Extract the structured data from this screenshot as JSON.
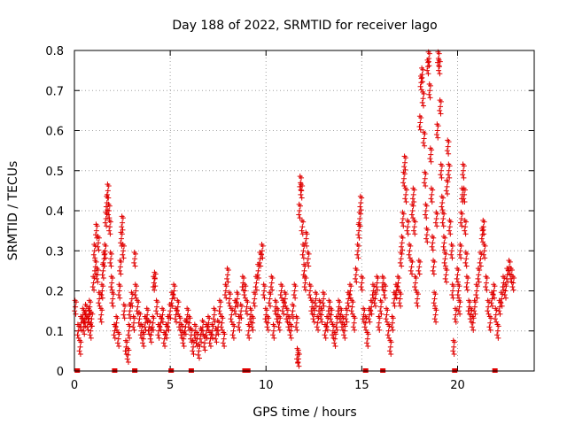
{
  "chart_data": {
    "type": "scatter",
    "title": "Day 188 of 2022, SRMTID for receiver lago",
    "xlabel": "GPS time / hours",
    "ylabel": "SRMTID / TECUs",
    "xlim": [
      0,
      24
    ],
    "ylim": [
      0,
      0.8
    ],
    "xticks": [
      0,
      5,
      10,
      15,
      20
    ],
    "xtick_labels": [
      "0",
      "5",
      "10",
      "15",
      "20"
    ],
    "yticks": [
      0,
      0.1,
      0.2,
      0.3,
      0.4,
      0.5,
      0.6,
      0.7,
      0.8
    ],
    "ytick_labels": [
      "0",
      "0.1",
      "0.2",
      "0.3",
      "0.4",
      "0.5",
      "0.6",
      "0.7",
      "0.8"
    ],
    "grid": true,
    "marker": "+",
    "color": "#e00000",
    "series": [
      {
        "name": "SRMTID",
        "points": [
          [
            0.05,
            0.16
          ],
          [
            0.2,
            0.1
          ],
          [
            0.3,
            0.06
          ],
          [
            0.35,
            0.12
          ],
          [
            0.45,
            0.14
          ],
          [
            0.5,
            0.11
          ],
          [
            0.55,
            0.13
          ],
          [
            0.6,
            0.15
          ],
          [
            0.7,
            0.12
          ],
          [
            0.75,
            0.14
          ],
          [
            0.8,
            0.16
          ],
          [
            0.85,
            0.1
          ],
          [
            0.9,
            0.13
          ],
          [
            1.0,
            0.22
          ],
          [
            1.05,
            0.3
          ],
          [
            1.1,
            0.26
          ],
          [
            1.15,
            0.35
          ],
          [
            1.2,
            0.24
          ],
          [
            1.25,
            0.32
          ],
          [
            1.3,
            0.18
          ],
          [
            1.4,
            0.14
          ],
          [
            1.45,
            0.2
          ],
          [
            1.5,
            0.25
          ],
          [
            1.55,
            0.28
          ],
          [
            1.6,
            0.3
          ],
          [
            1.65,
            0.38
          ],
          [
            1.7,
            0.42
          ],
          [
            1.75,
            0.45
          ],
          [
            1.8,
            0.4
          ],
          [
            1.85,
            0.36
          ],
          [
            1.9,
            0.28
          ],
          [
            1.95,
            0.22
          ],
          [
            2.0,
            0.18
          ],
          [
            2.1,
            0.1
          ],
          [
            2.2,
            0.12
          ],
          [
            2.3,
            0.08
          ],
          [
            2.35,
            0.2
          ],
          [
            2.4,
            0.26
          ],
          [
            2.45,
            0.33
          ],
          [
            2.5,
            0.37
          ],
          [
            2.55,
            0.3
          ],
          [
            2.6,
            0.15
          ],
          [
            2.7,
            0.06
          ],
          [
            2.8,
            0.04
          ],
          [
            2.85,
            0.1
          ],
          [
            2.9,
            0.15
          ],
          [
            3.0,
            0.18
          ],
          [
            3.1,
            0.12
          ],
          [
            3.15,
            0.28
          ],
          [
            3.2,
            0.2
          ],
          [
            3.3,
            0.16
          ],
          [
            3.4,
            0.13
          ],
          [
            3.5,
            0.1
          ],
          [
            3.6,
            0.08
          ],
          [
            3.7,
            0.12
          ],
          [
            3.8,
            0.14
          ],
          [
            3.9,
            0.11
          ],
          [
            4.0,
            0.09
          ],
          [
            4.1,
            0.12
          ],
          [
            4.15,
            0.22
          ],
          [
            4.2,
            0.23
          ],
          [
            4.3,
            0.16
          ],
          [
            4.4,
            0.1
          ],
          [
            4.5,
            0.12
          ],
          [
            4.6,
            0.14
          ],
          [
            4.7,
            0.08
          ],
          [
            4.8,
            0.1
          ],
          [
            4.9,
            0.12
          ],
          [
            5.0,
            0.15
          ],
          [
            5.1,
            0.18
          ],
          [
            5.2,
            0.2
          ],
          [
            5.3,
            0.14
          ],
          [
            5.4,
            0.16
          ],
          [
            5.5,
            0.12
          ],
          [
            5.6,
            0.1
          ],
          [
            5.7,
            0.08
          ],
          [
            5.8,
            0.11
          ],
          [
            5.9,
            0.14
          ],
          [
            6.0,
            0.12
          ],
          [
            6.1,
            0.09
          ],
          [
            6.2,
            0.06
          ],
          [
            6.3,
            0.1
          ],
          [
            6.4,
            0.08
          ],
          [
            6.5,
            0.05
          ],
          [
            6.6,
            0.09
          ],
          [
            6.7,
            0.11
          ],
          [
            6.8,
            0.07
          ],
          [
            6.9,
            0.1
          ],
          [
            7.0,
            0.12
          ],
          [
            7.1,
            0.08
          ],
          [
            7.2,
            0.1
          ],
          [
            7.3,
            0.14
          ],
          [
            7.4,
            0.09
          ],
          [
            7.5,
            0.11
          ],
          [
            7.6,
            0.16
          ],
          [
            7.7,
            0.12
          ],
          [
            7.8,
            0.08
          ],
          [
            7.9,
            0.2
          ],
          [
            8.0,
            0.24
          ],
          [
            8.1,
            0.18
          ],
          [
            8.2,
            0.14
          ],
          [
            8.3,
            0.1
          ],
          [
            8.4,
            0.16
          ],
          [
            8.5,
            0.18
          ],
          [
            8.6,
            0.12
          ],
          [
            8.7,
            0.15
          ],
          [
            8.8,
            0.22
          ],
          [
            8.9,
            0.2
          ],
          [
            9.0,
            0.16
          ],
          [
            9.1,
            0.1
          ],
          [
            9.2,
            0.14
          ],
          [
            9.3,
            0.12
          ],
          [
            9.4,
            0.18
          ],
          [
            9.5,
            0.22
          ],
          [
            9.6,
            0.25
          ],
          [
            9.7,
            0.28
          ],
          [
            9.8,
            0.3
          ],
          [
            9.9,
            0.2
          ],
          [
            10.0,
            0.14
          ],
          [
            10.1,
            0.12
          ],
          [
            10.2,
            0.18
          ],
          [
            10.3,
            0.22
          ],
          [
            10.4,
            0.1
          ],
          [
            10.5,
            0.16
          ],
          [
            10.6,
            0.14
          ],
          [
            10.7,
            0.12
          ],
          [
            10.8,
            0.2
          ],
          [
            10.9,
            0.16
          ],
          [
            11.0,
            0.18
          ],
          [
            11.1,
            0.14
          ],
          [
            11.2,
            0.12
          ],
          [
            11.3,
            0.1
          ],
          [
            11.4,
            0.15
          ],
          [
            11.5,
            0.2
          ],
          [
            11.6,
            0.12
          ],
          [
            11.65,
            0.04
          ],
          [
            11.7,
            0.03
          ],
          [
            11.75,
            0.4
          ],
          [
            11.8,
            0.47
          ],
          [
            11.85,
            0.45
          ],
          [
            11.9,
            0.36
          ],
          [
            11.95,
            0.3
          ],
          [
            12.0,
            0.25
          ],
          [
            12.05,
            0.22
          ],
          [
            12.1,
            0.33
          ],
          [
            12.2,
            0.28
          ],
          [
            12.3,
            0.2
          ],
          [
            12.4,
            0.16
          ],
          [
            12.5,
            0.14
          ],
          [
            12.6,
            0.18
          ],
          [
            12.7,
            0.12
          ],
          [
            12.8,
            0.16
          ],
          [
            12.9,
            0.14
          ],
          [
            13.0,
            0.18
          ],
          [
            13.1,
            0.1
          ],
          [
            13.2,
            0.12
          ],
          [
            13.3,
            0.16
          ],
          [
            13.4,
            0.14
          ],
          [
            13.5,
            0.1
          ],
          [
            13.6,
            0.08
          ],
          [
            13.7,
            0.12
          ],
          [
            13.8,
            0.16
          ],
          [
            13.9,
            0.14
          ],
          [
            14.0,
            0.12
          ],
          [
            14.1,
            0.1
          ],
          [
            14.2,
            0.14
          ],
          [
            14.3,
            0.18
          ],
          [
            14.4,
            0.2
          ],
          [
            14.5,
            0.16
          ],
          [
            14.6,
            0.12
          ],
          [
            14.7,
            0.24
          ],
          [
            14.8,
            0.3
          ],
          [
            14.85,
            0.35
          ],
          [
            14.9,
            0.38
          ],
          [
            14.95,
            0.42
          ],
          [
            15.0,
            0.22
          ],
          [
            15.1,
            0.14
          ],
          [
            15.2,
            0.12
          ],
          [
            15.3,
            0.08
          ],
          [
            15.4,
            0.14
          ],
          [
            15.5,
            0.16
          ],
          [
            15.6,
            0.2
          ],
          [
            15.7,
            0.18
          ],
          [
            15.8,
            0.22
          ],
          [
            15.9,
            0.12
          ],
          [
            16.0,
            0.16
          ],
          [
            16.1,
            0.22
          ],
          [
            16.2,
            0.2
          ],
          [
            16.3,
            0.14
          ],
          [
            16.4,
            0.1
          ],
          [
            16.5,
            0.06
          ],
          [
            16.6,
            0.12
          ],
          [
            16.7,
            0.18
          ],
          [
            16.8,
            0.2
          ],
          [
            16.9,
            0.22
          ],
          [
            17.0,
            0.18
          ],
          [
            17.05,
            0.28
          ],
          [
            17.1,
            0.32
          ],
          [
            17.15,
            0.38
          ],
          [
            17.2,
            0.48
          ],
          [
            17.25,
            0.52
          ],
          [
            17.3,
            0.44
          ],
          [
            17.4,
            0.36
          ],
          [
            17.5,
            0.3
          ],
          [
            17.6,
            0.26
          ],
          [
            17.65,
            0.4
          ],
          [
            17.7,
            0.44
          ],
          [
            17.75,
            0.36
          ],
          [
            17.8,
            0.22
          ],
          [
            17.9,
            0.18
          ],
          [
            18.0,
            0.26
          ],
          [
            18.05,
            0.62
          ],
          [
            18.1,
            0.72
          ],
          [
            18.15,
            0.74
          ],
          [
            18.2,
            0.68
          ],
          [
            18.25,
            0.58
          ],
          [
            18.3,
            0.48
          ],
          [
            18.35,
            0.4
          ],
          [
            18.4,
            0.34
          ],
          [
            18.45,
            0.76
          ],
          [
            18.5,
            0.78
          ],
          [
            18.55,
            0.7
          ],
          [
            18.6,
            0.54
          ],
          [
            18.65,
            0.44
          ],
          [
            18.7,
            0.32
          ],
          [
            18.75,
            0.26
          ],
          [
            18.8,
            0.18
          ],
          [
            18.85,
            0.14
          ],
          [
            18.9,
            0.38
          ],
          [
            18.95,
            0.6
          ],
          [
            19.0,
            0.78
          ],
          [
            19.05,
            0.76
          ],
          [
            19.1,
            0.66
          ],
          [
            19.15,
            0.5
          ],
          [
            19.2,
            0.42
          ],
          [
            19.25,
            0.38
          ],
          [
            19.3,
            0.32
          ],
          [
            19.35,
            0.28
          ],
          [
            19.4,
            0.24
          ],
          [
            19.45,
            0.46
          ],
          [
            19.5,
            0.56
          ],
          [
            19.55,
            0.5
          ],
          [
            19.6,
            0.36
          ],
          [
            19.7,
            0.3
          ],
          [
            19.75,
            0.2
          ],
          [
            19.8,
            0.06
          ],
          [
            19.9,
            0.14
          ],
          [
            20.0,
            0.24
          ],
          [
            20.05,
            0.2
          ],
          [
            20.1,
            0.16
          ],
          [
            20.15,
            0.3
          ],
          [
            20.2,
            0.38
          ],
          [
            20.25,
            0.44
          ],
          [
            20.3,
            0.5
          ],
          [
            20.35,
            0.44
          ],
          [
            20.4,
            0.36
          ],
          [
            20.45,
            0.28
          ],
          [
            20.5,
            0.22
          ],
          [
            20.6,
            0.16
          ],
          [
            20.7,
            0.14
          ],
          [
            20.8,
            0.12
          ],
          [
            20.9,
            0.16
          ],
          [
            21.0,
            0.2
          ],
          [
            21.1,
            0.24
          ],
          [
            21.2,
            0.28
          ],
          [
            21.3,
            0.34
          ],
          [
            21.35,
            0.36
          ],
          [
            21.4,
            0.3
          ],
          [
            21.5,
            0.22
          ],
          [
            21.6,
            0.16
          ],
          [
            21.7,
            0.12
          ],
          [
            21.8,
            0.18
          ],
          [
            21.9,
            0.2
          ],
          [
            22.0,
            0.14
          ],
          [
            22.1,
            0.1
          ],
          [
            22.2,
            0.16
          ],
          [
            22.3,
            0.18
          ],
          [
            22.4,
            0.22
          ],
          [
            22.5,
            0.2
          ],
          [
            22.6,
            0.24
          ],
          [
            22.7,
            0.26
          ],
          [
            22.8,
            0.24
          ],
          [
            22.9,
            0.22
          ]
        ],
        "zero_points": [
          0.15,
          2.1,
          3.15,
          5.05,
          6.1,
          8.9,
          9.05,
          15.2,
          16.1,
          19.85,
          21.95
        ]
      }
    ]
  }
}
